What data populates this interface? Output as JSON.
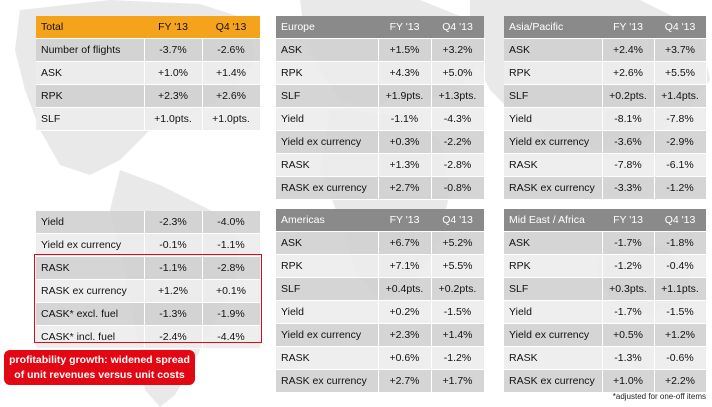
{
  "total": {
    "header": [
      "Total",
      "FY '13",
      "Q4 '13"
    ],
    "rows": [
      [
        "Number of flights",
        "-3.7%",
        "-2.6%"
      ],
      [
        "ASK",
        "+1.0%",
        "+1.4%"
      ],
      [
        "RPK",
        "+2.3%",
        "+2.6%"
      ],
      [
        "SLF",
        "+1.0pts.",
        "+1.0pts."
      ]
    ]
  },
  "total_lower": {
    "rows": [
      [
        "Yield",
        "-2.3%",
        "-4.0%"
      ],
      [
        "Yield ex currency",
        "-0.1%",
        "-1.1%"
      ],
      [
        "RASK",
        "-1.1%",
        "-2.8%"
      ],
      [
        "RASK ex currency",
        "+1.2%",
        "+0.1%"
      ],
      [
        "CASK* excl. fuel",
        "-1.3%",
        "-1.9%"
      ],
      [
        "CASK* incl. fuel",
        "-2.4%",
        "-4.4%"
      ]
    ]
  },
  "europe": {
    "header": [
      "Europe",
      "FY '13",
      "Q4 '13"
    ],
    "rows": [
      [
        "ASK",
        "+1.5%",
        "+3.2%"
      ],
      [
        "RPK",
        "+4.3%",
        "+5.0%"
      ],
      [
        "SLF",
        "+1.9pts.",
        "+1.3pts."
      ],
      [
        "Yield",
        "-1.1%",
        "-4.3%"
      ],
      [
        "Yield ex currency",
        "+0.3%",
        "-2.2%"
      ],
      [
        "RASK",
        "+1.3%",
        "-2.8%"
      ],
      [
        "RASK ex currency",
        "+2.7%",
        "-0.8%"
      ]
    ]
  },
  "asia": {
    "header": [
      "Asia/Pacific",
      "FY '13",
      "Q4 '13"
    ],
    "rows": [
      [
        "ASK",
        "+2.4%",
        "+3.7%"
      ],
      [
        "RPK",
        "+2.6%",
        "+5.5%"
      ],
      [
        "SLF",
        "+0.2pts.",
        "+1.4pts."
      ],
      [
        "Yield",
        "-8.1%",
        "-7.8%"
      ],
      [
        "Yield ex currency",
        "-3.6%",
        "-2.9%"
      ],
      [
        "RASK",
        "-7.8%",
        "-6.1%"
      ],
      [
        "RASK ex currency",
        "-3.3%",
        "-1.2%"
      ]
    ]
  },
  "americas": {
    "header": [
      "Americas",
      "FY '13",
      "Q4 '13"
    ],
    "rows": [
      [
        "ASK",
        "+6.7%",
        "+5.2%"
      ],
      [
        "RPK",
        "+7.1%",
        "+5.5%"
      ],
      [
        "SLF",
        "+0.4pts.",
        "+0.2pts."
      ],
      [
        "Yield",
        "+0.2%",
        "-1.5%"
      ],
      [
        "Yield ex currency",
        "+2.3%",
        "+1.4%"
      ],
      [
        "RASK",
        "+0.6%",
        "-1.2%"
      ],
      [
        "RASK ex currency",
        "+2.7%",
        "+1.7%"
      ]
    ]
  },
  "mideast": {
    "header": [
      "Mid East / Africa",
      "FY '13",
      "Q4 '13"
    ],
    "rows": [
      [
        "ASK",
        "-1.7%",
        "-1.8%"
      ],
      [
        "RPK",
        "-1.2%",
        "-0.4%"
      ],
      [
        "SLF",
        "+0.3pts.",
        "+1.1pts."
      ],
      [
        "Yield",
        "-1.7%",
        "-1.5%"
      ],
      [
        "Yield ex currency",
        "+0.5%",
        "+1.2%"
      ],
      [
        "RASK",
        "-1.3%",
        "-0.6%"
      ],
      [
        "RASK ex currency",
        "+1.0%",
        "+2.2%"
      ]
    ]
  },
  "callout": {
    "line1": "profitability growth: widened spread",
    "line2": "of unit revenues versus unit costs"
  },
  "footnote": "*adjusted for one-off items",
  "colors": {
    "accent_orange": "#f5a31a",
    "header_grey": "#8a8a8a",
    "highlight_red": "#e30613"
  }
}
